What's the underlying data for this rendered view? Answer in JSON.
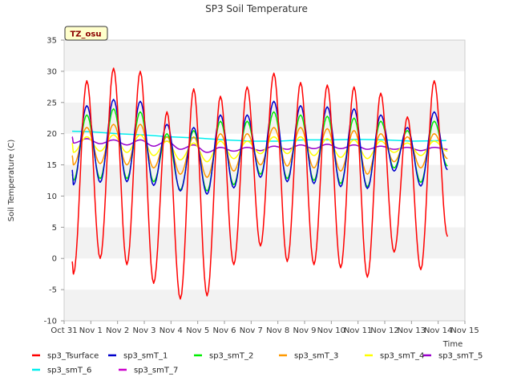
{
  "chart_data": {
    "type": "line",
    "title": "SP3 Soil Temperature",
    "xlabel": "Time",
    "ylabel": "Soil Temperature (C)",
    "ylim": [
      -10,
      35
    ],
    "yticks": [
      -10,
      -5,
      0,
      5,
      10,
      15,
      20,
      25,
      30,
      35
    ],
    "xlim": [
      0,
      15
    ],
    "xtick_labels": [
      "Oct 31",
      "Nov 1",
      "Nov 2",
      "Nov 3",
      "Nov 4",
      "Nov 5",
      "Nov 6",
      "Nov 7",
      "Nov 8",
      "Nov 9",
      "Nov 10",
      "Nov 11",
      "Nov 12",
      "Nov 13",
      "Nov 14",
      "Nov 15"
    ],
    "grid": "alternating horizontal bands",
    "legend_position": "bottom",
    "annotation": "TZ_osu",
    "x_unit": "days since Oct 31",
    "daily_extremes_x": [
      0.35,
      0.85,
      1.35,
      1.85,
      2.35,
      2.85,
      3.35,
      3.85,
      4.35,
      4.85,
      5.35,
      5.85,
      6.35,
      6.85,
      7.35,
      7.85,
      8.35,
      8.85,
      9.35,
      9.85,
      10.35,
      10.85,
      11.35,
      11.85,
      12.35,
      12.85,
      13.35,
      13.85,
      14.35
    ],
    "series": [
      {
        "name": "sp3_Tsurface",
        "color": "#ff0000",
        "x_start": 0.3,
        "start": -0.5,
        "extremes": [
          -2.5,
          28.5,
          0.0,
          30.5,
          -1.0,
          30.0,
          -4.0,
          23.5,
          -6.5,
          27.2,
          -6.0,
          26.0,
          -1.0,
          27.5,
          2.0,
          29.7,
          -0.5,
          28.2,
          -1.0,
          27.8,
          -1.5,
          27.5,
          -3.0,
          26.5,
          1.0,
          22.7,
          -1.8,
          28.5,
          3.5
        ]
      },
      {
        "name": "sp3_smT_1",
        "color": "#0000cc",
        "x_start": 0.3,
        "start": 14.2,
        "extremes": [
          11.8,
          24.5,
          12.2,
          25.5,
          12.3,
          25.2,
          11.7,
          21.5,
          10.8,
          21.0,
          10.3,
          23.0,
          11.3,
          23.0,
          13.0,
          25.2,
          12.3,
          24.5,
          12.0,
          24.3,
          11.5,
          24.0,
          11.2,
          23.0,
          14.0,
          21.0,
          11.6,
          23.5,
          14.2
        ]
      },
      {
        "name": "sp3_smT_2",
        "color": "#00ee00",
        "x_start": 0.3,
        "start": 13.5,
        "extremes": [
          12.5,
          23.0,
          12.8,
          24.0,
          12.8,
          23.5,
          12.3,
          20.0,
          11.0,
          20.5,
          10.8,
          22.0,
          11.8,
          22.0,
          13.5,
          23.5,
          12.8,
          23.0,
          12.5,
          22.8,
          12.0,
          22.5,
          11.5,
          22.0,
          14.5,
          20.5,
          12.2,
          22.0,
          14.8
        ]
      },
      {
        "name": "sp3_smT_3",
        "color": "#ff9900",
        "x_start": 0.3,
        "start": 16.5,
        "extremes": [
          15.0,
          21.0,
          15.2,
          21.5,
          15.0,
          21.5,
          14.5,
          19.5,
          13.5,
          19.5,
          13.0,
          20.0,
          14.0,
          20.0,
          15.0,
          21.0,
          14.8,
          21.0,
          14.5,
          20.8,
          14.0,
          20.5,
          13.5,
          20.0,
          15.5,
          19.5,
          14.5,
          20.0,
          16.0
        ]
      },
      {
        "name": "sp3_smT_4",
        "color": "#ffff00",
        "x_start": 0.3,
        "start": 18.5,
        "extremes": [
          17.0,
          19.5,
          17.2,
          19.8,
          17.0,
          19.8,
          16.5,
          18.8,
          15.8,
          18.5,
          15.5,
          18.8,
          16.0,
          18.8,
          16.8,
          19.5,
          16.8,
          19.5,
          16.5,
          19.2,
          16.2,
          19.0,
          16.0,
          18.8,
          17.0,
          18.5,
          16.5,
          18.8,
          17.2
        ]
      },
      {
        "name": "sp3_smT_5",
        "color": "#9900cc",
        "x_start": 0.3,
        "start": 19.5,
        "extremes": [
          18.5,
          19.2,
          18.4,
          19.0,
          18.2,
          19.0,
          18.0,
          18.8,
          17.5,
          18.2,
          17.0,
          17.8,
          17.2,
          17.8,
          17.3,
          18.0,
          17.5,
          18.2,
          17.6,
          18.3,
          17.6,
          18.2,
          17.5,
          18.0,
          17.5,
          17.8,
          17.3,
          17.8,
          17.5
        ]
      },
      {
        "name": "sp3_smT_6",
        "color": "#00eeee",
        "x": [
          0.3,
          1.0,
          2.0,
          3.0,
          4.0,
          5.0,
          6.0,
          7.0,
          8.0,
          9.0,
          10.0,
          11.0,
          12.0,
          13.0,
          14.3
        ],
        "values": [
          20.4,
          20.3,
          20.0,
          19.8,
          19.5,
          19.3,
          19.0,
          18.8,
          18.8,
          19.0,
          19.0,
          19.1,
          19.0,
          18.8,
          18.9
        ]
      },
      {
        "name": "sp3_smT_7",
        "color": "#cc00cc",
        "x": [
          0.3,
          1.0,
          2.0,
          3.0,
          4.0,
          5.0,
          6.0,
          7.0,
          8.0,
          9.0,
          10.0,
          11.0,
          12.0,
          13.0,
          14.3
        ],
        "values": [
          21.6,
          21.4,
          21.2,
          21.1,
          20.9,
          20.7,
          20.4,
          20.2,
          20.1,
          20.0,
          20.0,
          20.0,
          19.9,
          19.8,
          19.8
        ]
      }
    ]
  }
}
